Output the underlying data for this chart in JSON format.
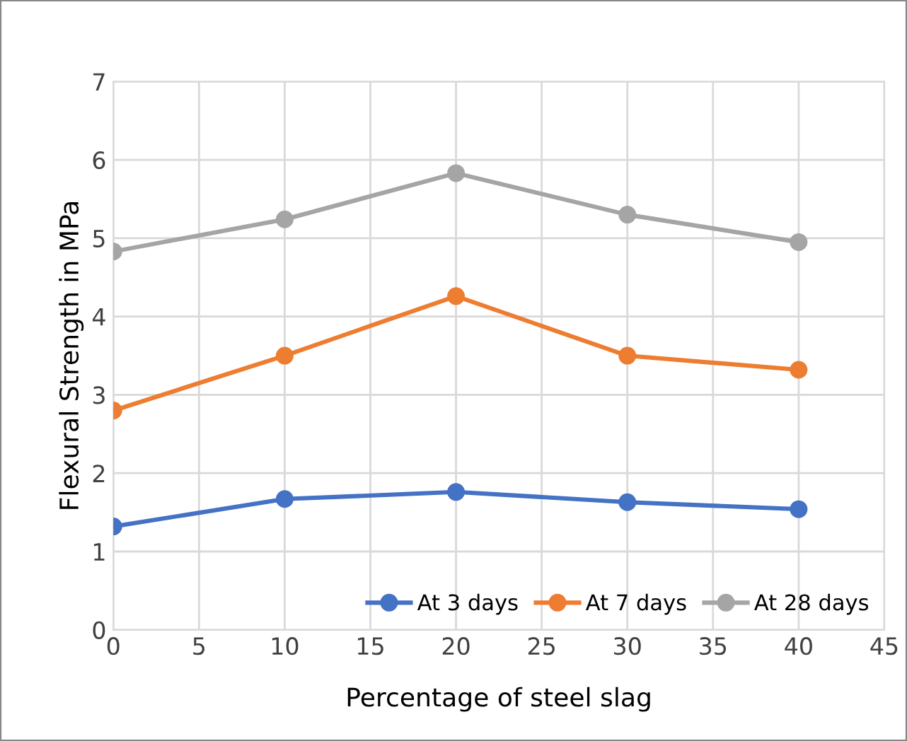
{
  "chart_data": {
    "type": "line",
    "xlabel": "Percentage of steel slag",
    "ylabel": "Flexural Strength in MPa",
    "x": [
      0,
      10,
      20,
      30,
      40
    ],
    "series": [
      {
        "name": "At 3 days",
        "color": "#4472c4",
        "values": [
          1.32,
          1.67,
          1.76,
          1.63,
          1.54
        ]
      },
      {
        "name": "At 7 days",
        "color": "#ed7d31",
        "values": [
          2.8,
          3.5,
          4.26,
          3.5,
          3.32
        ]
      },
      {
        "name": "At 28 days",
        "color": "#a5a5a5",
        "values": [
          4.83,
          5.24,
          5.83,
          5.3,
          4.95
        ]
      }
    ],
    "xlim": [
      0,
      45
    ],
    "xticks": [
      0,
      5,
      10,
      15,
      20,
      25,
      30,
      35,
      40,
      45
    ],
    "ylim": [
      0,
      7
    ],
    "yticks": [
      0,
      1,
      2,
      3,
      4,
      5,
      6,
      7
    ],
    "grid": true,
    "legend": "bottom right",
    "marker": "circle",
    "line_style": "solid"
  }
}
